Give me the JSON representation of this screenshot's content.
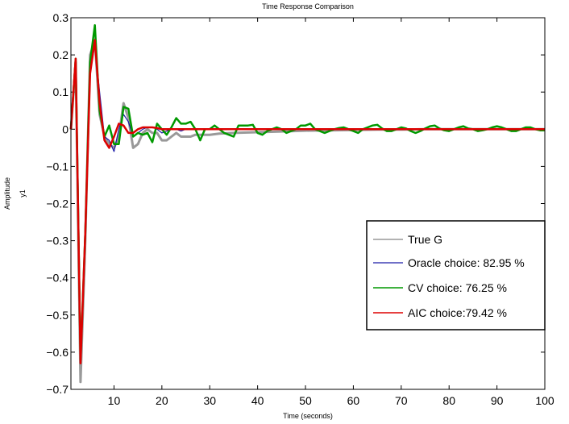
{
  "chart_data": {
    "type": "line",
    "title": "Time Response Comparison",
    "xlabel": "Time (seconds)",
    "ylabel": "Amplitude",
    "channel_label": "y1",
    "xlim": [
      1,
      100
    ],
    "ylim": [
      -0.7,
      0.3
    ],
    "xticks": [
      10,
      20,
      30,
      40,
      50,
      60,
      70,
      80,
      90,
      100
    ],
    "yticks": [
      -0.7,
      -0.6,
      -0.5,
      -0.4,
      -0.3,
      -0.2,
      -0.1,
      0,
      0.1,
      0.2,
      0.3
    ],
    "xtick_labels": [
      "10",
      "20",
      "30",
      "40",
      "50",
      "60",
      "70",
      "80",
      "90",
      "100"
    ],
    "ytick_labels": [
      "−0.7",
      "−0.6",
      "−0.5",
      "−0.4",
      "−0.3",
      "−0.2",
      "−0.1",
      "0",
      "0.1",
      "0.2",
      "0.3"
    ],
    "grid": false,
    "legend_position": "lower-right",
    "series": [
      {
        "name": "True G",
        "color": "#999999",
        "width": 3,
        "x": [
          1,
          2,
          3,
          4,
          5,
          6,
          7,
          8,
          9,
          10,
          11,
          12,
          13,
          14,
          15,
          16,
          17,
          18,
          19,
          20,
          21,
          22,
          23,
          24,
          25,
          26,
          27,
          28,
          29,
          30,
          32,
          35,
          40,
          45,
          50,
          55,
          60,
          65,
          70,
          75,
          80,
          85,
          90,
          95,
          100
        ],
        "y": [
          0,
          0.18,
          -0.68,
          -0.3,
          0.2,
          0.24,
          0.04,
          -0.02,
          -0.04,
          -0.05,
          -0.02,
          0.07,
          0.03,
          -0.05,
          -0.04,
          -0.01,
          0,
          -0.01,
          -0.01,
          -0.03,
          -0.03,
          -0.02,
          -0.01,
          -0.02,
          -0.02,
          -0.02,
          -0.015,
          -0.015,
          -0.015,
          -0.015,
          -0.012,
          -0.01,
          -0.008,
          -0.006,
          -0.004,
          -0.003,
          -0.002,
          -0.001,
          -0.001,
          0,
          0,
          0,
          0,
          0,
          0
        ]
      },
      {
        "name": "Oracle choice: 82.95 %",
        "color": "#1a1aa8",
        "width": 1.2,
        "x": [
          1,
          2,
          3,
          4,
          5,
          6,
          7,
          8,
          9,
          10,
          11,
          12,
          13,
          14,
          15,
          16,
          17,
          18,
          19,
          20,
          21,
          22,
          23,
          24,
          25,
          26,
          27,
          28,
          29,
          30,
          32,
          35,
          40,
          45,
          50,
          55,
          60,
          65,
          70,
          75,
          80,
          85,
          90,
          95,
          100
        ],
        "y": [
          0,
          0.19,
          -0.63,
          -0.27,
          0.15,
          0.23,
          0.1,
          -0.02,
          -0.03,
          -0.06,
          0,
          0.04,
          0.02,
          -0.02,
          -0.01,
          0,
          0.005,
          0.005,
          0,
          -0.01,
          -0.005,
          0,
          0,
          -0.005,
          0,
          0,
          0,
          0,
          0,
          0,
          0,
          0,
          0,
          0,
          0,
          0,
          0,
          0,
          0,
          0,
          0,
          0,
          0,
          0,
          0
        ]
      },
      {
        "name": "CV choice: 76.25 %",
        "color": "#009900",
        "width": 2.5,
        "x": [
          1,
          2,
          3,
          4,
          5,
          6,
          7,
          8,
          9,
          10,
          11,
          12,
          13,
          14,
          15,
          16,
          17,
          18,
          19,
          20,
          21,
          22,
          23,
          24,
          25,
          26,
          27,
          28,
          29,
          30,
          31,
          32,
          33,
          34,
          35,
          36,
          37,
          38,
          39,
          40,
          41,
          42,
          43,
          44,
          45,
          46,
          47,
          48,
          49,
          50,
          51,
          52,
          53,
          54,
          55,
          56,
          57,
          58,
          59,
          60,
          61,
          62,
          63,
          64,
          65,
          66,
          67,
          68,
          69,
          70,
          71,
          72,
          73,
          74,
          75,
          76,
          77,
          78,
          79,
          80,
          81,
          82,
          83,
          84,
          85,
          86,
          87,
          88,
          89,
          90,
          91,
          92,
          93,
          94,
          95,
          96,
          97,
          98,
          99,
          100
        ],
        "y": [
          0,
          0.19,
          -0.62,
          -0.28,
          0.18,
          0.28,
          0.05,
          -0.02,
          0.01,
          -0.04,
          -0.04,
          0.06,
          0.055,
          -0.02,
          -0.01,
          -0.015,
          -0.01,
          -0.035,
          0.015,
          0.0,
          -0.015,
          0.005,
          0.03,
          0.015,
          0.015,
          0.02,
          0.0,
          -0.03,
          0.0,
          0.0,
          0.01,
          0.0,
          -0.01,
          -0.015,
          -0.02,
          0.01,
          0.01,
          0.01,
          0.012,
          -0.01,
          -0.015,
          -0.005,
          0.0,
          0.005,
          0.0,
          -0.01,
          -0.005,
          0.0,
          0.01,
          0.01,
          0.015,
          0.0,
          -0.005,
          -0.01,
          -0.005,
          0.0,
          0.003,
          0.005,
          0.0,
          -0.005,
          -0.01,
          0.0,
          0.005,
          0.01,
          0.012,
          0.002,
          -0.005,
          -0.005,
          0.0,
          0.005,
          0.002,
          -0.005,
          -0.01,
          -0.005,
          0.002,
          0.008,
          0.01,
          0.002,
          -0.003,
          -0.005,
          0.0,
          0.005,
          0.008,
          0.002,
          0.0,
          -0.005,
          -0.003,
          0.0,
          0.005,
          0.008,
          0.005,
          0.0,
          -0.005,
          -0.005,
          0.0,
          0.005,
          0.005,
          0.0,
          -0.003,
          -0.003
        ]
      },
      {
        "name": "AIC choice:79.42 %",
        "color": "#dd0000",
        "width": 2.5,
        "x": [
          1,
          2,
          3,
          4,
          5,
          6,
          7,
          8,
          9,
          10,
          11,
          12,
          13,
          14,
          15,
          16,
          17,
          18,
          19,
          20,
          21,
          22,
          23,
          24,
          25,
          26,
          27,
          28,
          29,
          30,
          32,
          35,
          40,
          45,
          50,
          55,
          60,
          65,
          70,
          75,
          80,
          85,
          90,
          95,
          100
        ],
        "y": [
          0,
          0.19,
          -0.63,
          -0.28,
          0.15,
          0.24,
          0.07,
          -0.03,
          -0.05,
          -0.02,
          0.015,
          0.01,
          -0.01,
          -0.01,
          0,
          0.005,
          0.005,
          0.005,
          0.003,
          0,
          0,
          0,
          0,
          0,
          0,
          0,
          0,
          0,
          0,
          0,
          0,
          0,
          0,
          0,
          0,
          0,
          0,
          0,
          0,
          0,
          0,
          0,
          0,
          0,
          0
        ]
      }
    ]
  }
}
